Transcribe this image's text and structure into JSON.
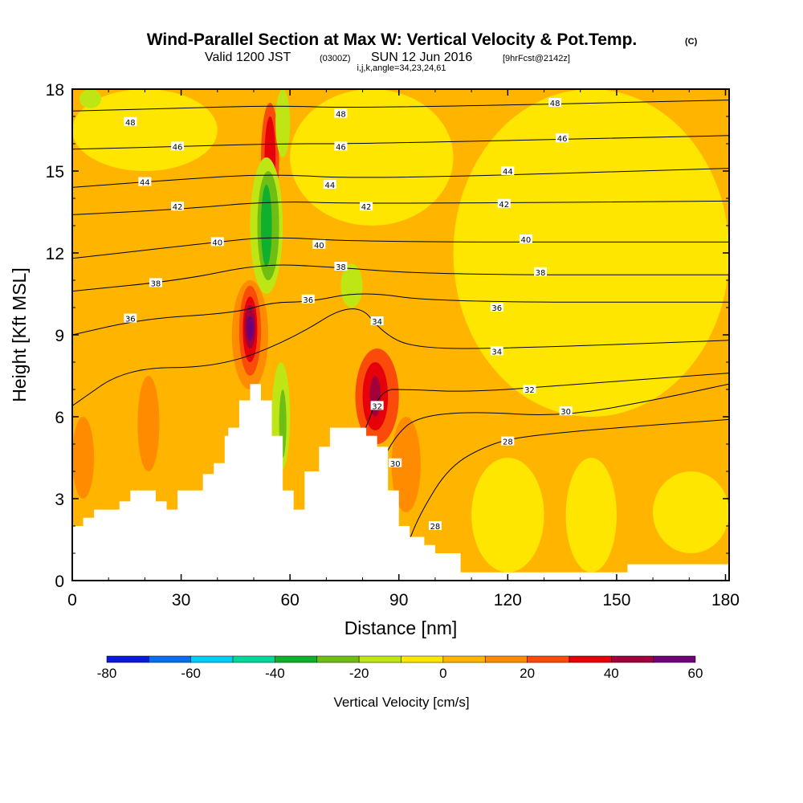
{
  "title": {
    "main": "Wind-Parallel Section at Max W: Vertical Velocity & Pot.Temp.",
    "copyright": "(C)",
    "valid_prefix": "Valid 1200 JST",
    "valid_zulu": "(0300Z)",
    "valid_date": "SUN 12 Jun 2016",
    "forecast": "[9hrFcst@2142z]",
    "indices": "i,j,k,angle=34,23,24,61"
  },
  "chart_data": {
    "type": "heatmap",
    "xlabel": "Distance [nm]",
    "ylabel": "Height [Kft MSL]",
    "xlim": [
      0,
      181
    ],
    "ylim": [
      0,
      18
    ],
    "x_ticks": [
      0,
      30,
      60,
      90,
      120,
      150,
      180
    ],
    "y_ticks": [
      0,
      3,
      6,
      9,
      12,
      15,
      18
    ],
    "colorbar": {
      "title": "Vertical Velocity [cm/s]",
      "labels": [
        -80,
        -60,
        -40,
        -20,
        0,
        20,
        40,
        60
      ],
      "bins": [
        {
          "lo": -80,
          "hi": -70,
          "color": "#0a1adc"
        },
        {
          "lo": -70,
          "hi": -60,
          "color": "#0a6ef0"
        },
        {
          "lo": -60,
          "hi": -50,
          "color": "#00cdf5"
        },
        {
          "lo": -50,
          "hi": -40,
          "color": "#00d79a"
        },
        {
          "lo": -40,
          "hi": -30,
          "color": "#0eb02e"
        },
        {
          "lo": -30,
          "hi": -20,
          "color": "#6ebe14"
        },
        {
          "lo": -20,
          "hi": -10,
          "color": "#bee614"
        },
        {
          "lo": -10,
          "hi": 0,
          "color": "#ffe600"
        },
        {
          "lo": 0,
          "hi": 10,
          "color": "#ffb400"
        },
        {
          "lo": 10,
          "hi": 20,
          "color": "#ff8c00"
        },
        {
          "lo": 20,
          "hi": 30,
          "color": "#fa4b0a"
        },
        {
          "lo": 30,
          "hi": 40,
          "color": "#e6000a"
        },
        {
          "lo": 40,
          "hi": 50,
          "color": "#a0003c"
        },
        {
          "lo": 50,
          "hi": 60,
          "color": "#6e0078"
        }
      ]
    },
    "terrain_profile": [
      [
        0,
        2.0
      ],
      [
        3,
        2.0
      ],
      [
        3,
        2.3
      ],
      [
        6,
        2.3
      ],
      [
        6,
        2.6
      ],
      [
        13,
        2.6
      ],
      [
        13,
        2.9
      ],
      [
        16,
        2.9
      ],
      [
        16,
        3.3
      ],
      [
        23,
        3.3
      ],
      [
        23,
        2.9
      ],
      [
        26,
        2.9
      ],
      [
        26,
        2.6
      ],
      [
        29,
        2.6
      ],
      [
        29,
        3.3
      ],
      [
        36,
        3.3
      ],
      [
        36,
        3.9
      ],
      [
        39,
        3.9
      ],
      [
        39,
        4.3
      ],
      [
        42,
        4.3
      ],
      [
        42,
        5.3
      ],
      [
        43,
        5.3
      ],
      [
        43,
        5.6
      ],
      [
        46,
        5.6
      ],
      [
        46,
        6.6
      ],
      [
        49,
        6.6
      ],
      [
        49,
        7.2
      ],
      [
        52,
        7.2
      ],
      [
        52,
        6.6
      ],
      [
        55,
        6.6
      ],
      [
        55,
        5.3
      ],
      [
        58,
        5.3
      ],
      [
        58,
        3.3
      ],
      [
        61,
        3.3
      ],
      [
        61,
        2.6
      ],
      [
        64,
        2.6
      ],
      [
        64,
        4.0
      ],
      [
        68,
        4.0
      ],
      [
        68,
        4.9
      ],
      [
        71,
        4.9
      ],
      [
        71,
        5.6
      ],
      [
        81,
        5.6
      ],
      [
        81,
        5.3
      ],
      [
        84,
        5.3
      ],
      [
        84,
        4.9
      ],
      [
        87,
        4.9
      ],
      [
        87,
        3.3
      ],
      [
        90,
        3.3
      ],
      [
        90,
        2.0
      ],
      [
        93,
        2.0
      ],
      [
        93,
        1.6
      ],
      [
        97,
        1.6
      ],
      [
        97,
        1.3
      ],
      [
        100,
        1.3
      ],
      [
        100,
        1.0
      ],
      [
        107,
        1.0
      ],
      [
        107,
        0.3
      ],
      [
        153,
        0.3
      ],
      [
        153,
        0.6
      ],
      [
        181,
        0.6
      ],
      [
        181,
        0
      ]
    ],
    "theta_contours": [
      {
        "label": 28,
        "label_at": [
          100,
          2.0
        ],
        "points": [
          [
            92,
            1.2
          ],
          [
            96,
            2.5
          ],
          [
            104,
            4.2
          ],
          [
            115,
            5.0
          ],
          [
            125,
            5.3
          ],
          [
            150,
            5.6
          ],
          [
            181,
            5.9
          ]
        ]
      },
      {
        "label": 28,
        "label_at": [
          120,
          5.1
        ]
      },
      {
        "label": 30,
        "label_at": [
          89,
          4.3
        ],
        "points": [
          [
            84,
            4.0
          ],
          [
            89,
            5.3
          ],
          [
            95,
            6.0
          ],
          [
            110,
            6.2
          ],
          [
            135,
            6.0
          ],
          [
            160,
            6.6
          ],
          [
            181,
            7.2
          ]
        ]
      },
      {
        "label": 30,
        "label_at": [
          136,
          6.2
        ]
      },
      {
        "label": 32,
        "label_at": [
          84,
          6.4
        ],
        "points": [
          [
            80,
            5.3
          ],
          [
            85,
            7.0
          ],
          [
            92,
            7.0
          ],
          [
            110,
            6.9
          ],
          [
            140,
            7.2
          ],
          [
            181,
            7.6
          ]
        ]
      },
      {
        "label": 32,
        "label_at": [
          126,
          7.0
        ]
      },
      {
        "label": 34,
        "label_at": [
          84,
          9.5
        ],
        "points": [
          [
            0,
            6.4
          ],
          [
            15,
            7.8
          ],
          [
            40,
            7.8
          ],
          [
            60,
            8.8
          ],
          [
            78,
            10.3
          ],
          [
            86,
            9.0
          ],
          [
            95,
            8.5
          ],
          [
            120,
            8.5
          ],
          [
            181,
            8.8
          ]
        ]
      },
      {
        "label": 34,
        "label_at": [
          117,
          8.4
        ]
      },
      {
        "label": 36,
        "label_at": [
          16,
          9.6
        ],
        "points": [
          [
            0,
            9.0
          ],
          [
            20,
            9.6
          ],
          [
            45,
            9.8
          ],
          [
            55,
            10.2
          ],
          [
            65,
            10.2
          ],
          [
            80,
            10.6
          ],
          [
            100,
            10.2
          ],
          [
            181,
            10.2
          ]
        ]
      },
      {
        "label": 36,
        "label_at": [
          65,
          10.3
        ]
      },
      {
        "label": 36,
        "label_at": [
          117,
          10.0
        ]
      },
      {
        "label": 38,
        "label_at": [
          23,
          10.9
        ],
        "points": [
          [
            0,
            10.6
          ],
          [
            30,
            11.0
          ],
          [
            52,
            11.6
          ],
          [
            70,
            11.5
          ],
          [
            100,
            11.2
          ],
          [
            181,
            11.2
          ]
        ]
      },
      {
        "label": 38,
        "label_at": [
          74,
          11.5
        ]
      },
      {
        "label": 38,
        "label_at": [
          129,
          11.3
        ]
      },
      {
        "label": 40,
        "label_at": [
          40,
          12.4
        ],
        "points": [
          [
            0,
            11.8
          ],
          [
            40,
            12.4
          ],
          [
            55,
            12.6
          ],
          [
            80,
            12.4
          ],
          [
            181,
            12.4
          ]
        ]
      },
      {
        "label": 40,
        "label_at": [
          68,
          12.3
        ]
      },
      {
        "label": 40,
        "label_at": [
          125,
          12.5
        ]
      },
      {
        "label": 42,
        "label_at": [
          29,
          13.7
        ],
        "points": [
          [
            0,
            13.4
          ],
          [
            30,
            13.6
          ],
          [
            55,
            13.9
          ],
          [
            80,
            13.8
          ],
          [
            181,
            13.9
          ]
        ]
      },
      {
        "label": 42,
        "label_at": [
          81,
          13.7
        ]
      },
      {
        "label": 42,
        "label_at": [
          119,
          13.8
        ]
      },
      {
        "label": 44,
        "label_at": [
          20,
          14.6
        ],
        "points": [
          [
            0,
            14.4
          ],
          [
            30,
            14.7
          ],
          [
            55,
            14.9
          ],
          [
            80,
            14.7
          ],
          [
            181,
            15.1
          ]
        ]
      },
      {
        "label": 44,
        "label_at": [
          71,
          14.5
        ]
      },
      {
        "label": 44,
        "label_at": [
          120,
          15.0
        ]
      },
      {
        "label": 46,
        "label_at": [
          29,
          15.9
        ],
        "points": [
          [
            0,
            15.8
          ],
          [
            30,
            15.9
          ],
          [
            55,
            16.0
          ],
          [
            80,
            16.0
          ],
          [
            181,
            16.3
          ]
        ]
      },
      {
        "label": 46,
        "label_at": [
          74,
          15.9
        ]
      },
      {
        "label": 46,
        "label_at": [
          135,
          16.2
        ]
      },
      {
        "label": 48,
        "label_at": [
          16,
          16.8
        ],
        "points": [
          [
            0,
            17.2
          ],
          [
            30,
            17.3
          ],
          [
            55,
            17.4
          ],
          [
            80,
            17.3
          ],
          [
            181,
            17.6
          ]
        ]
      },
      {
        "label": 48,
        "label_at": [
          74,
          17.1
        ]
      },
      {
        "label": 48,
        "label_at": [
          133,
          17.5
        ]
      }
    ],
    "w_regions": [
      {
        "w": 5,
        "x": [
          0,
          181
        ],
        "y": [
          0,
          18
        ]
      },
      {
        "w": -5,
        "x": [
          105,
          181
        ],
        "y": [
          6,
          18
        ]
      },
      {
        "w": -5,
        "x": [
          60,
          105
        ],
        "y": [
          13,
          18
        ]
      },
      {
        "w": -5,
        "x": [
          0,
          40
        ],
        "y": [
          15,
          18
        ]
      },
      {
        "w": -5,
        "x": [
          110,
          130
        ],
        "y": [
          0.3,
          4.5
        ]
      },
      {
        "w": -5,
        "x": [
          136,
          150
        ],
        "y": [
          0.3,
          4.5
        ]
      },
      {
        "w": -5,
        "x": [
          160,
          181
        ],
        "y": [
          1.0,
          4.0
        ]
      },
      {
        "w": 15,
        "x": [
          88,
          96
        ],
        "y": [
          2.5,
          6.0
        ]
      },
      {
        "w": 15,
        "x": [
          18,
          24
        ],
        "y": [
          4.0,
          7.5
        ]
      },
      {
        "w": 15,
        "x": [
          0,
          6
        ],
        "y": [
          3.0,
          6.0
        ]
      },
      {
        "w": 15,
        "x": [
          44,
          54
        ],
        "y": [
          7.0,
          11.0
        ]
      },
      {
        "w": 25,
        "x": [
          46,
          52
        ],
        "y": [
          7.5,
          10.8
        ]
      },
      {
        "w": 35,
        "x": [
          47,
          51
        ],
        "y": [
          8.0,
          10.4
        ]
      },
      {
        "w": 45,
        "x": [
          47.5,
          50.5
        ],
        "y": [
          8.5,
          10.1
        ]
      },
      {
        "w": 55,
        "x": [
          48,
          50
        ],
        "y": [
          8.8,
          9.7
        ]
      },
      {
        "w": 25,
        "x": [
          78,
          90
        ],
        "y": [
          5.0,
          8.5
        ]
      },
      {
        "w": 35,
        "x": [
          80,
          87
        ],
        "y": [
          5.5,
          8.0
        ]
      },
      {
        "w": 45,
        "x": [
          82,
          85
        ],
        "y": [
          6.0,
          7.5
        ]
      },
      {
        "w": 25,
        "x": [
          52,
          57
        ],
        "y": [
          13.5,
          17.5
        ]
      },
      {
        "w": 35,
        "x": [
          53,
          56
        ],
        "y": [
          14.0,
          17.0
        ]
      },
      {
        "w": -15,
        "x": [
          55,
          60
        ],
        "y": [
          4.0,
          8.0
        ]
      },
      {
        "w": -25,
        "x": [
          57,
          59
        ],
        "y": [
          4.5,
          7.0
        ]
      },
      {
        "w": -15,
        "x": [
          49,
          58
        ],
        "y": [
          10.5,
          15.5
        ]
      },
      {
        "w": -25,
        "x": [
          51,
          57
        ],
        "y": [
          11.0,
          15.0
        ]
      },
      {
        "w": -35,
        "x": [
          52,
          55
        ],
        "y": [
          11.5,
          14.5
        ]
      },
      {
        "w": -15,
        "x": [
          56,
          60
        ],
        "y": [
          15.5,
          18
        ]
      },
      {
        "w": -15,
        "x": [
          74,
          80
        ],
        "y": [
          10.0,
          11.6
        ]
      },
      {
        "w": -15,
        "x": [
          2,
          8
        ],
        "y": [
          17.3,
          18
        ]
      }
    ]
  }
}
